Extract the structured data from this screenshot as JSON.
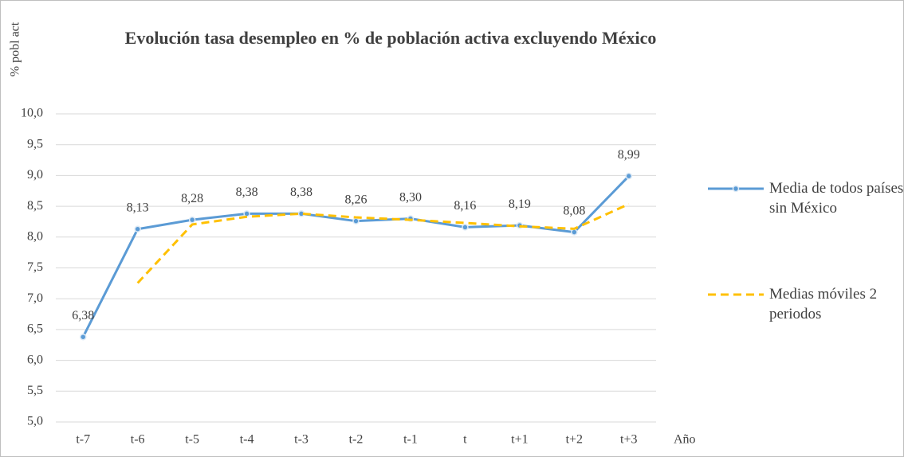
{
  "chart_data": {
    "type": "line",
    "title": "Evolución tasa desempleo en % de población activa excluyendo México",
    "y_label": "% pobl act",
    "x_label": "Año",
    "categories": [
      "t-7",
      "t-6",
      "t-5",
      "t-4",
      "t-3",
      "t-2",
      "t-1",
      "t",
      "t+1",
      "t+2",
      "t+3"
    ],
    "series": [
      {
        "name": "Media de todos países sin México",
        "color": "#5b9bd5",
        "style": "solid",
        "markers": true,
        "values": [
          6.38,
          8.13,
          8.28,
          8.38,
          8.38,
          8.26,
          8.3,
          8.16,
          8.19,
          8.08,
          8.99
        ],
        "value_labels": [
          "6,38",
          "8,13",
          "8,28",
          "8,38",
          "8,38",
          "8,26",
          "8,30",
          "8,16",
          "8,19",
          "8,08",
          "8,99"
        ]
      },
      {
        "name": "Medias móviles 2 periodos",
        "color": "#ffc000",
        "style": "dashed",
        "markers": false,
        "values": [
          null,
          7.255,
          8.205,
          8.33,
          8.38,
          8.32,
          8.28,
          8.23,
          8.175,
          8.135,
          8.535
        ]
      }
    ],
    "ylim": [
      5.0,
      10.0
    ],
    "yticks": [
      {
        "value": 5.0,
        "label": "5,0"
      },
      {
        "value": 5.5,
        "label": "5,5"
      },
      {
        "value": 6.0,
        "label": "6,0"
      },
      {
        "value": 6.5,
        "label": "6,5"
      },
      {
        "value": 7.0,
        "label": "7,0"
      },
      {
        "value": 7.5,
        "label": "7,5"
      },
      {
        "value": 8.0,
        "label": "8,0"
      },
      {
        "value": 8.5,
        "label": "8,5"
      },
      {
        "value": 9.0,
        "label": "9,0"
      },
      {
        "value": 9.5,
        "label": "9,5"
      },
      {
        "value": 10.0,
        "label": "10,0"
      }
    ],
    "grid": true,
    "legend": "right"
  }
}
